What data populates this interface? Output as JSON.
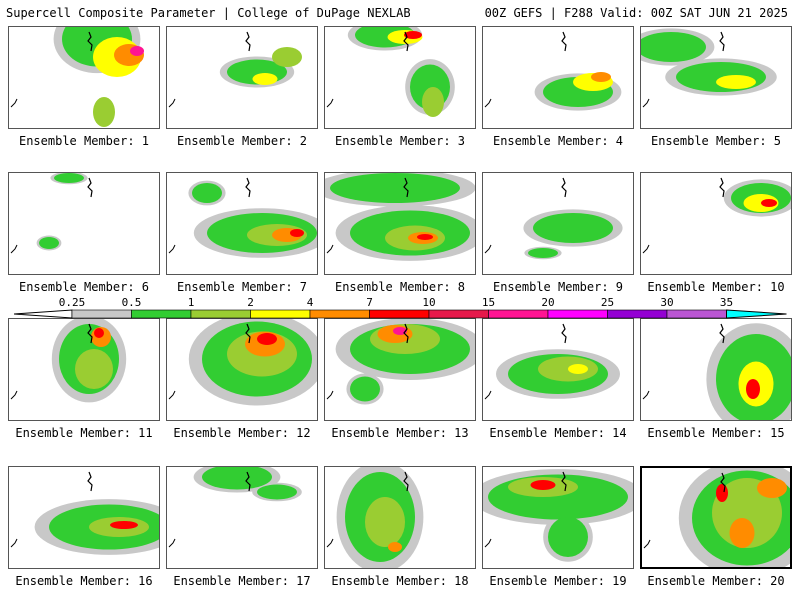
{
  "header": {
    "left": "Supercell Composite Parameter | College of DuPage NEXLAB",
    "right": "00Z GEFS | F288 Valid: 00Z SAT JUN 21 2025"
  },
  "caption_prefix": "Ensemble Member: ",
  "selected_member": 20,
  "legend": {
    "labels": [
      "0.25",
      "0.5",
      "1",
      "2",
      "4",
      "7",
      "10",
      "15",
      "20",
      "25",
      "30",
      "35"
    ],
    "colors": [
      "#c8c8c8",
      "#32cd32",
      "#9acd32",
      "#ffff00",
      "#ff8c00",
      "#ff0000",
      "#e6194b",
      "#ff1493",
      "#ff00ff",
      "#9400d3",
      "#ba55d3",
      "#00ffff"
    ]
  },
  "members": [
    {
      "id": 1,
      "blobs": [
        [
          88,
          12,
          70,
          55,
          1
        ],
        [
          108,
          30,
          48,
          40,
          3
        ],
        [
          120,
          28,
          30,
          22,
          4
        ],
        [
          128,
          24,
          14,
          10,
          6
        ],
        [
          95,
          85,
          22,
          30,
          2
        ]
      ]
    },
    {
      "id": 2,
      "blobs": [
        [
          90,
          45,
          60,
          25,
          1
        ],
        [
          120,
          30,
          30,
          20,
          2
        ],
        [
          98,
          52,
          25,
          12,
          3
        ]
      ]
    },
    {
      "id": 3,
      "blobs": [
        [
          60,
          8,
          60,
          25,
          1
        ],
        [
          80,
          10,
          35,
          14,
          3
        ],
        [
          88,
          8,
          18,
          8,
          5
        ],
        [
          105,
          60,
          40,
          45,
          1
        ],
        [
          108,
          75,
          22,
          30,
          2
        ]
      ]
    },
    {
      "id": 4,
      "blobs": [
        [
          95,
          65,
          70,
          30,
          1
        ],
        [
          110,
          55,
          40,
          18,
          3
        ],
        [
          118,
          50,
          20,
          10,
          4
        ]
      ]
    },
    {
      "id": 5,
      "blobs": [
        [
          30,
          20,
          70,
          30,
          1
        ],
        [
          80,
          50,
          90,
          30,
          1
        ],
        [
          95,
          55,
          40,
          14,
          3
        ]
      ]
    },
    {
      "id": 6,
      "blobs": [
        [
          60,
          5,
          30,
          10,
          1
        ],
        [
          40,
          70,
          20,
          12,
          1
        ]
      ]
    },
    {
      "id": 7,
      "blobs": [
        [
          40,
          20,
          30,
          20,
          1
        ],
        [
          95,
          60,
          110,
          40,
          1
        ],
        [
          110,
          62,
          60,
          22,
          2
        ],
        [
          120,
          62,
          30,
          14,
          4
        ],
        [
          130,
          60,
          14,
          8,
          5
        ]
      ]
    },
    {
      "id": 8,
      "blobs": [
        [
          70,
          15,
          130,
          30,
          1
        ],
        [
          85,
          60,
          120,
          45,
          1
        ],
        [
          90,
          65,
          60,
          25,
          2
        ],
        [
          98,
          65,
          30,
          12,
          4
        ],
        [
          100,
          64,
          16,
          6,
          5
        ]
      ]
    },
    {
      "id": 9,
      "blobs": [
        [
          90,
          55,
          80,
          30,
          1
        ],
        [
          60,
          80,
          30,
          10,
          1
        ]
      ]
    },
    {
      "id": 10,
      "blobs": [
        [
          120,
          25,
          60,
          30,
          1
        ],
        [
          120,
          30,
          35,
          18,
          3
        ],
        [
          128,
          30,
          16,
          8,
          5
        ]
      ]
    },
    {
      "id": 11,
      "blobs": [
        [
          80,
          40,
          60,
          70,
          1
        ],
        [
          85,
          50,
          38,
          40,
          2
        ],
        [
          92,
          18,
          20,
          20,
          4
        ],
        [
          90,
          14,
          10,
          10,
          5
        ]
      ]
    },
    {
      "id": 12,
      "blobs": [
        [
          90,
          40,
          110,
          75,
          1
        ],
        [
          95,
          35,
          70,
          45,
          2
        ],
        [
          98,
          25,
          40,
          25,
          4
        ],
        [
          100,
          20,
          20,
          12,
          5
        ]
      ]
    },
    {
      "id": 13,
      "blobs": [
        [
          85,
          30,
          120,
          50,
          1
        ],
        [
          80,
          20,
          70,
          30,
          2
        ],
        [
          70,
          15,
          35,
          18,
          4
        ],
        [
          75,
          12,
          14,
          8,
          6
        ],
        [
          40,
          70,
          30,
          25,
          1
        ]
      ]
    },
    {
      "id": 14,
      "blobs": [
        [
          75,
          55,
          100,
          40,
          1
        ],
        [
          85,
          50,
          60,
          25,
          2
        ],
        [
          95,
          50,
          20,
          10,
          3
        ]
      ]
    },
    {
      "id": 15,
      "blobs": [
        [
          115,
          60,
          80,
          90,
          1
        ],
        [
          115,
          65,
          35,
          45,
          3
        ],
        [
          112,
          70,
          14,
          20,
          5
        ]
      ]
    },
    {
      "id": 16,
      "blobs": [
        [
          100,
          60,
          120,
          45,
          1
        ],
        [
          110,
          60,
          60,
          20,
          2
        ],
        [
          115,
          58,
          28,
          8,
          5
        ]
      ]
    },
    {
      "id": 17,
      "blobs": [
        [
          70,
          10,
          70,
          25,
          1
        ],
        [
          110,
          25,
          40,
          15,
          1
        ]
      ]
    },
    {
      "id": 18,
      "blobs": [
        [
          55,
          50,
          70,
          90,
          1
        ],
        [
          60,
          55,
          40,
          50,
          2
        ],
        [
          70,
          80,
          14,
          10,
          4
        ]
      ]
    },
    {
      "id": 19,
      "blobs": [
        [
          75,
          30,
          140,
          45,
          1
        ],
        [
          60,
          20,
          70,
          20,
          2
        ],
        [
          60,
          18,
          25,
          10,
          5
        ],
        [
          85,
          70,
          40,
          40,
          1
        ]
      ]
    },
    {
      "id": 20,
      "blobs": [
        [
          105,
          50,
          110,
          95,
          1
        ],
        [
          105,
          45,
          70,
          70,
          2
        ],
        [
          100,
          65,
          25,
          30,
          4
        ],
        [
          130,
          20,
          30,
          20,
          4
        ],
        [
          80,
          25,
          12,
          18,
          5
        ]
      ]
    }
  ]
}
